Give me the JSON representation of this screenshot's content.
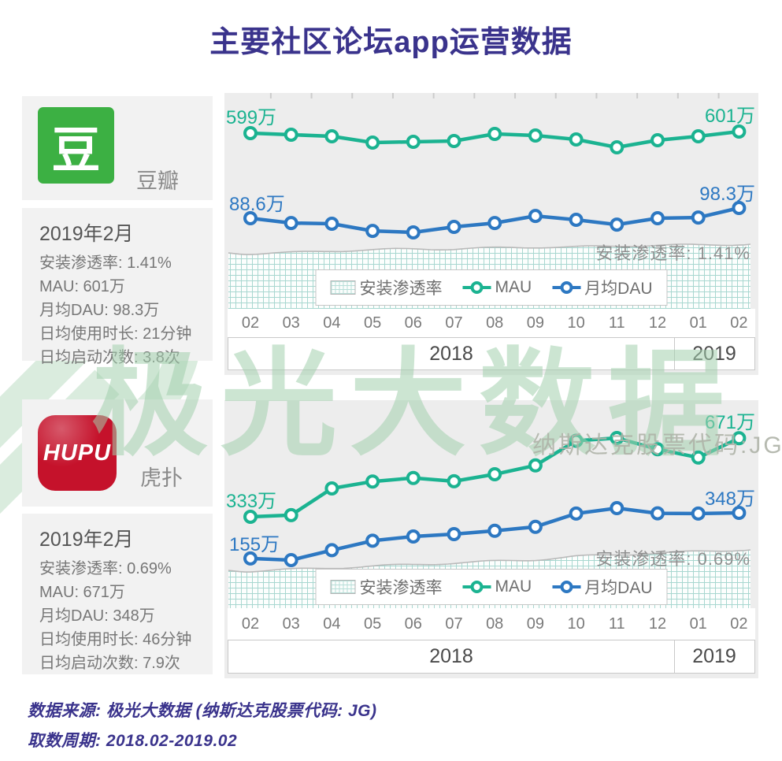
{
  "title": "主要社区论坛app运营数据",
  "watermark": {
    "text": "极光大数据",
    "subtext": "纳斯达克股票代码:JG"
  },
  "footer": {
    "source": "数据来源: 极光大数据 (纳斯达克股票代码: JG)",
    "period": "取数周期: 2018.02-2019.02"
  },
  "colors": {
    "heading": "#3a338c",
    "mau_line": "#1bb391",
    "dau_line": "#2d78c2",
    "douban_green": "#3cb043",
    "hupu_red": "#c5122b",
    "watermark_green": "#a3d0ad",
    "grid_teal": "#a8d7d0",
    "panel_gray": "#ededed",
    "card_gray": "#f2f2f2"
  },
  "apps": [
    {
      "name": "豆瓣",
      "logo_text": "豆",
      "date": "2019年2月",
      "stats": [
        "安装渗透率: 1.41%",
        "MAU: 601万",
        "月均DAU: 98.3万",
        "日均使用时长: 21分钟",
        "日均启动次数: 3.8次"
      ]
    },
    {
      "name": "虎扑",
      "logo_text": "HUPU",
      "date": "2019年2月",
      "stats": [
        "安装渗透率: 0.69%",
        "MAU: 671万",
        "月均DAU: 348万",
        "日均使用时长: 46分钟",
        "日均启动次数: 7.9次"
      ]
    }
  ],
  "chart_data": [
    {
      "type": "line",
      "app": "豆瓣",
      "categories": [
        "02",
        "03",
        "04",
        "05",
        "06",
        "07",
        "08",
        "09",
        "10",
        "11",
        "12",
        "01",
        "02"
      ],
      "year_groups": [
        {
          "label": "2018",
          "months": 11
        },
        {
          "label": "2019",
          "months": 2
        }
      ],
      "legend_position": "bottom-center",
      "series": [
        {
          "name": "安装渗透率",
          "type": "area",
          "unit": "%",
          "values": [
            1.31,
            1.32,
            1.34,
            1.35,
            1.36,
            1.36,
            1.37,
            1.38,
            1.38,
            1.39,
            1.4,
            1.4,
            1.41
          ]
        },
        {
          "name": "MAU",
          "type": "line",
          "unit": "万",
          "values": [
            599,
            597,
            595,
            587,
            588,
            589,
            598,
            596,
            591,
            581,
            590,
            595,
            601
          ]
        },
        {
          "name": "月均DAU",
          "type": "line",
          "unit": "万",
          "values": [
            88.6,
            84.1,
            83.4,
            76.6,
            75.2,
            80.4,
            84.1,
            90.8,
            87.1,
            82.6,
            88.6,
            89.3,
            98.3
          ]
        }
      ],
      "labels": {
        "mau_start": "599万",
        "mau_end": "601万",
        "dau_start": "88.6万",
        "dau_end": "98.3万",
        "penetration": "安装渗透率: 1.41%"
      }
    },
    {
      "type": "line",
      "app": "虎扑",
      "categories": [
        "02",
        "03",
        "04",
        "05",
        "06",
        "07",
        "08",
        "09",
        "10",
        "11",
        "12",
        "01",
        "02"
      ],
      "year_groups": [
        {
          "label": "2018",
          "months": 11
        },
        {
          "label": "2019",
          "months": 2
        }
      ],
      "legend_position": "bottom-center",
      "series": [
        {
          "name": "安装渗透率",
          "type": "area",
          "unit": "%",
          "values": [
            0.56,
            0.57,
            0.58,
            0.59,
            0.6,
            0.61,
            0.62,
            0.63,
            0.65,
            0.66,
            0.67,
            0.68,
            0.69
          ]
        },
        {
          "name": "MAU",
          "type": "line",
          "unit": "万",
          "values": [
            333,
            340,
            455,
            485,
            500,
            486,
            516,
            554,
            660,
            672,
            624,
            588,
            671
          ]
        },
        {
          "name": "月均DAU",
          "type": "line",
          "unit": "万",
          "values": [
            155,
            148,
            190,
            230,
            248,
            258,
            272,
            289,
            345,
            368,
            346,
            345,
            348
          ]
        }
      ],
      "labels": {
        "mau_start": "333万",
        "mau_end": "671万",
        "dau_start": "155万",
        "dau_end": "348万",
        "penetration": "安装渗透率: 0.69%"
      }
    }
  ]
}
